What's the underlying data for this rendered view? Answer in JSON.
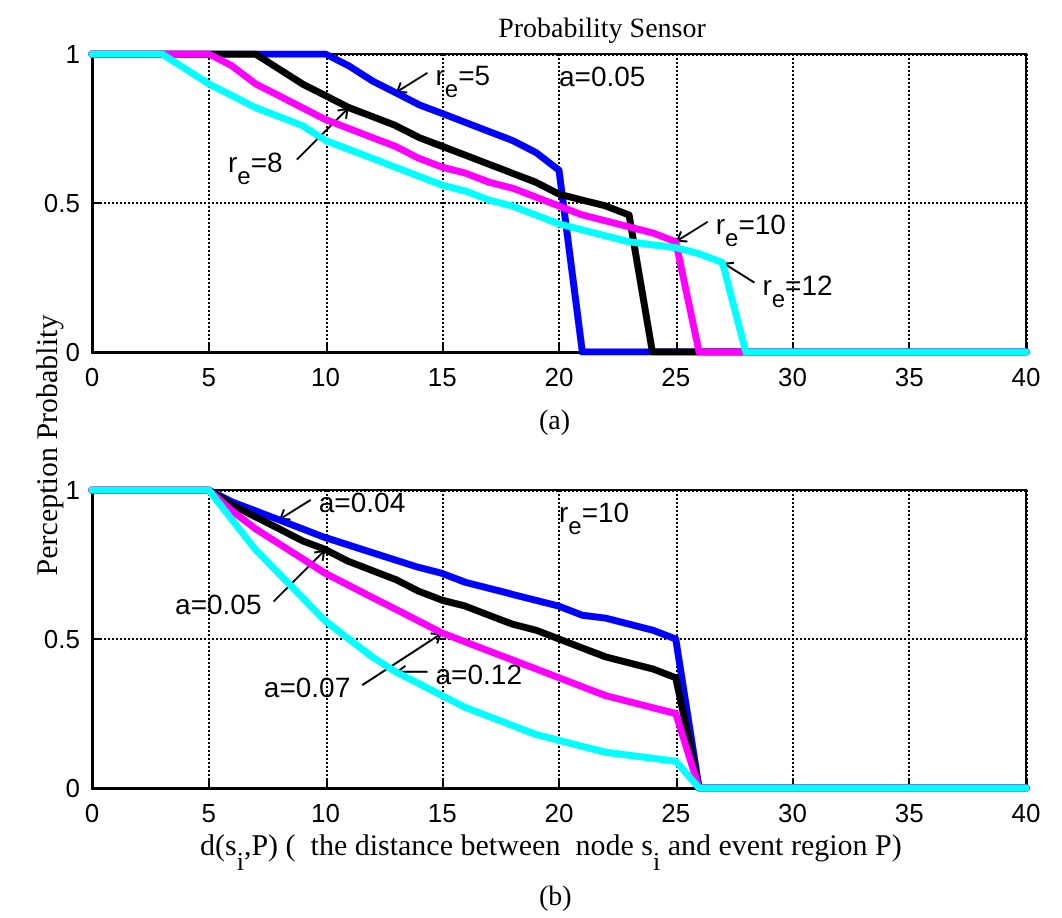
{
  "chart_data": [
    {
      "type": "line",
      "title": "Probability Sensor",
      "ylabel": "Perception  Probablity",
      "xlim": [
        0,
        40
      ],
      "xticks": [
        0,
        5,
        10,
        15,
        20,
        25,
        30,
        35,
        40
      ],
      "ylim": [
        0,
        1
      ],
      "yticks": [
        0,
        0.5,
        1
      ],
      "grid": true,
      "marker": "none",
      "line_style": "solid",
      "annotations": [
        "a=0.05",
        "(a)",
        {
          "text": "r$_{e}$=5",
          "x": 13,
          "y": 0.87
        },
        {
          "text": "r$_{e}$=8",
          "x": 11,
          "y": 0.82
        },
        {
          "text": "r$_{e}$=10",
          "x": 25,
          "y": 0.37
        },
        {
          "text": "r$_{e}$=12",
          "x": 27,
          "y": 0.3
        }
      ],
      "series": [
        {
          "color": "#0000ff",
          "x": [
            0,
            10,
            11,
            12,
            13,
            14,
            15,
            16,
            17,
            18,
            19,
            20,
            21,
            40
          ],
          "values": [
            1,
            1,
            0.96,
            0.91,
            0.87,
            0.83,
            0.8,
            0.77,
            0.74,
            0.71,
            0.67,
            0.61,
            0,
            0
          ]
        },
        {
          "color": "#000000",
          "x": [
            0,
            7,
            8,
            9,
            10,
            11,
            12,
            13,
            14,
            15,
            16,
            17,
            18,
            19,
            20,
            21,
            22,
            23,
            24,
            40
          ],
          "values": [
            1,
            1,
            0.95,
            0.9,
            0.86,
            0.82,
            0.79,
            0.76,
            0.72,
            0.69,
            0.66,
            0.63,
            0.6,
            0.57,
            0.53,
            0.51,
            0.49,
            0.46,
            0,
            0
          ]
        },
        {
          "color": "#ff00ff",
          "x": [
            0,
            5,
            6,
            7,
            8,
            9,
            10,
            11,
            12,
            13,
            14,
            15,
            16,
            17,
            18,
            19,
            20,
            21,
            22,
            23,
            24,
            25,
            26,
            40
          ],
          "values": [
            1,
            1,
            0.96,
            0.9,
            0.86,
            0.82,
            0.78,
            0.75,
            0.72,
            0.69,
            0.65,
            0.62,
            0.6,
            0.57,
            0.55,
            0.52,
            0.49,
            0.46,
            0.44,
            0.42,
            0.4,
            0.37,
            0,
            0
          ]
        },
        {
          "color": "#00ffff",
          "x": [
            0,
            3,
            4,
            5,
            6,
            7,
            8,
            9,
            10,
            11,
            12,
            13,
            14,
            15,
            16,
            17,
            18,
            19,
            20,
            21,
            22,
            23,
            24,
            25,
            26,
            27,
            28,
            40
          ],
          "values": [
            1,
            1,
            0.95,
            0.9,
            0.86,
            0.82,
            0.79,
            0.76,
            0.71,
            0.68,
            0.65,
            0.62,
            0.59,
            0.56,
            0.54,
            0.51,
            0.49,
            0.46,
            0.43,
            0.41,
            0.39,
            0.37,
            0.36,
            0.35,
            0.33,
            0.3,
            0,
            0
          ]
        }
      ]
    },
    {
      "type": "line",
      "xlabel": "d(s$_{i}$,P) (  the distance between  node s$_{i}$ and event region P)",
      "xlim": [
        0,
        40
      ],
      "xticks": [
        0,
        5,
        10,
        15,
        20,
        25,
        30,
        35,
        40
      ],
      "ylim": [
        0,
        1
      ],
      "yticks": [
        0,
        0.5,
        1
      ],
      "grid": true,
      "marker": "none",
      "line_style": "solid",
      "annotations": [
        "r$_{e}$=10",
        "(b)",
        {
          "text": "a=0.04",
          "x": 8,
          "y": 0.9
        },
        {
          "text": "a=0.05",
          "x": 10,
          "y": 0.8
        },
        {
          "text": "a=0.07",
          "x": 15,
          "y": 0.52
        },
        {
          "text": "a=0.12",
          "x": 13,
          "y": 0.39
        }
      ],
      "series": [
        {
          "color": "#0000ff",
          "x": [
            0,
            5,
            6,
            7,
            8,
            9,
            10,
            12,
            14,
            15,
            16,
            18,
            20,
            21,
            22,
            24,
            25,
            26,
            40
          ],
          "values": [
            1,
            1,
            0.96,
            0.93,
            0.9,
            0.87,
            0.84,
            0.79,
            0.74,
            0.72,
            0.69,
            0.65,
            0.61,
            0.58,
            0.57,
            0.53,
            0.5,
            0,
            0
          ]
        },
        {
          "color": "#000000",
          "x": [
            0,
            5,
            6,
            7,
            8,
            9,
            10,
            11,
            12,
            13,
            14,
            15,
            16,
            17,
            18,
            19,
            20,
            21,
            22,
            23,
            24,
            25,
            26,
            40
          ],
          "values": [
            1,
            1,
            0.95,
            0.91,
            0.87,
            0.83,
            0.8,
            0.76,
            0.73,
            0.7,
            0.66,
            0.63,
            0.61,
            0.58,
            0.55,
            0.53,
            0.5,
            0.47,
            0.44,
            0.42,
            0.4,
            0.37,
            0,
            0
          ]
        },
        {
          "color": "#ff00ff",
          "x": [
            0,
            5,
            6,
            7,
            8,
            9,
            10,
            11,
            12,
            13,
            14,
            15,
            16,
            17,
            18,
            19,
            20,
            21,
            22,
            23,
            24,
            25,
            26,
            40
          ],
          "values": [
            1,
            1,
            0.93,
            0.87,
            0.82,
            0.77,
            0.72,
            0.68,
            0.64,
            0.6,
            0.56,
            0.52,
            0.49,
            0.46,
            0.43,
            0.4,
            0.37,
            0.34,
            0.31,
            0.29,
            0.27,
            0.25,
            0,
            0
          ]
        },
        {
          "color": "#00ffff",
          "x": [
            0,
            5,
            6,
            7,
            8,
            9,
            10,
            11,
            12,
            13,
            14,
            15,
            16,
            17,
            18,
            19,
            20,
            21,
            22,
            23,
            24,
            25,
            26,
            40
          ],
          "values": [
            1,
            1,
            0.9,
            0.8,
            0.72,
            0.64,
            0.56,
            0.5,
            0.44,
            0.39,
            0.35,
            0.31,
            0.27,
            0.24,
            0.21,
            0.18,
            0.16,
            0.14,
            0.12,
            0.11,
            0.1,
            0.09,
            0,
            0
          ]
        }
      ]
    }
  ]
}
